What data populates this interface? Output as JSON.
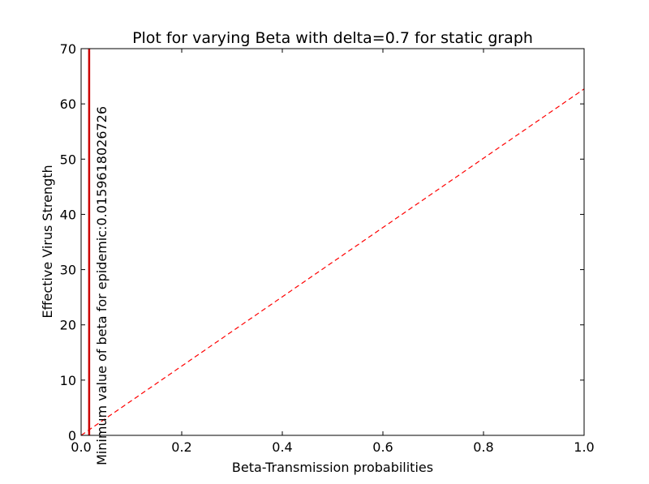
{
  "chart_data": {
    "type": "line",
    "title": "Plot for varying Beta with delta=0.7 for static graph",
    "xlabel": "Beta-Transmission probabilities",
    "ylabel": "Effective Virus Strength",
    "xlim": [
      0.0,
      1.0
    ],
    "ylim": [
      0,
      70
    ],
    "x_ticks": [
      0.0,
      0.2,
      0.4,
      0.6,
      0.8,
      1.0
    ],
    "x_tick_labels": [
      "0.0",
      "0.2",
      "0.4",
      "0.6",
      "0.8",
      "1.0"
    ],
    "y_ticks": [
      0,
      10,
      20,
      30,
      40,
      50,
      60,
      70
    ],
    "y_tick_labels": [
      "0",
      "10",
      "20",
      "30",
      "40",
      "50",
      "60",
      "70"
    ],
    "grid": false,
    "legend": "none",
    "series": [
      {
        "style": "dashed",
        "color": "#ff0000",
        "x": [
          0.0,
          1.0
        ],
        "y": [
          0.0,
          62.7
        ]
      }
    ],
    "vline": {
      "x": 0.0159618026726,
      "color": "#cc0000",
      "label": "Minimum value of beta for epidemic:0.0159618026726"
    }
  }
}
